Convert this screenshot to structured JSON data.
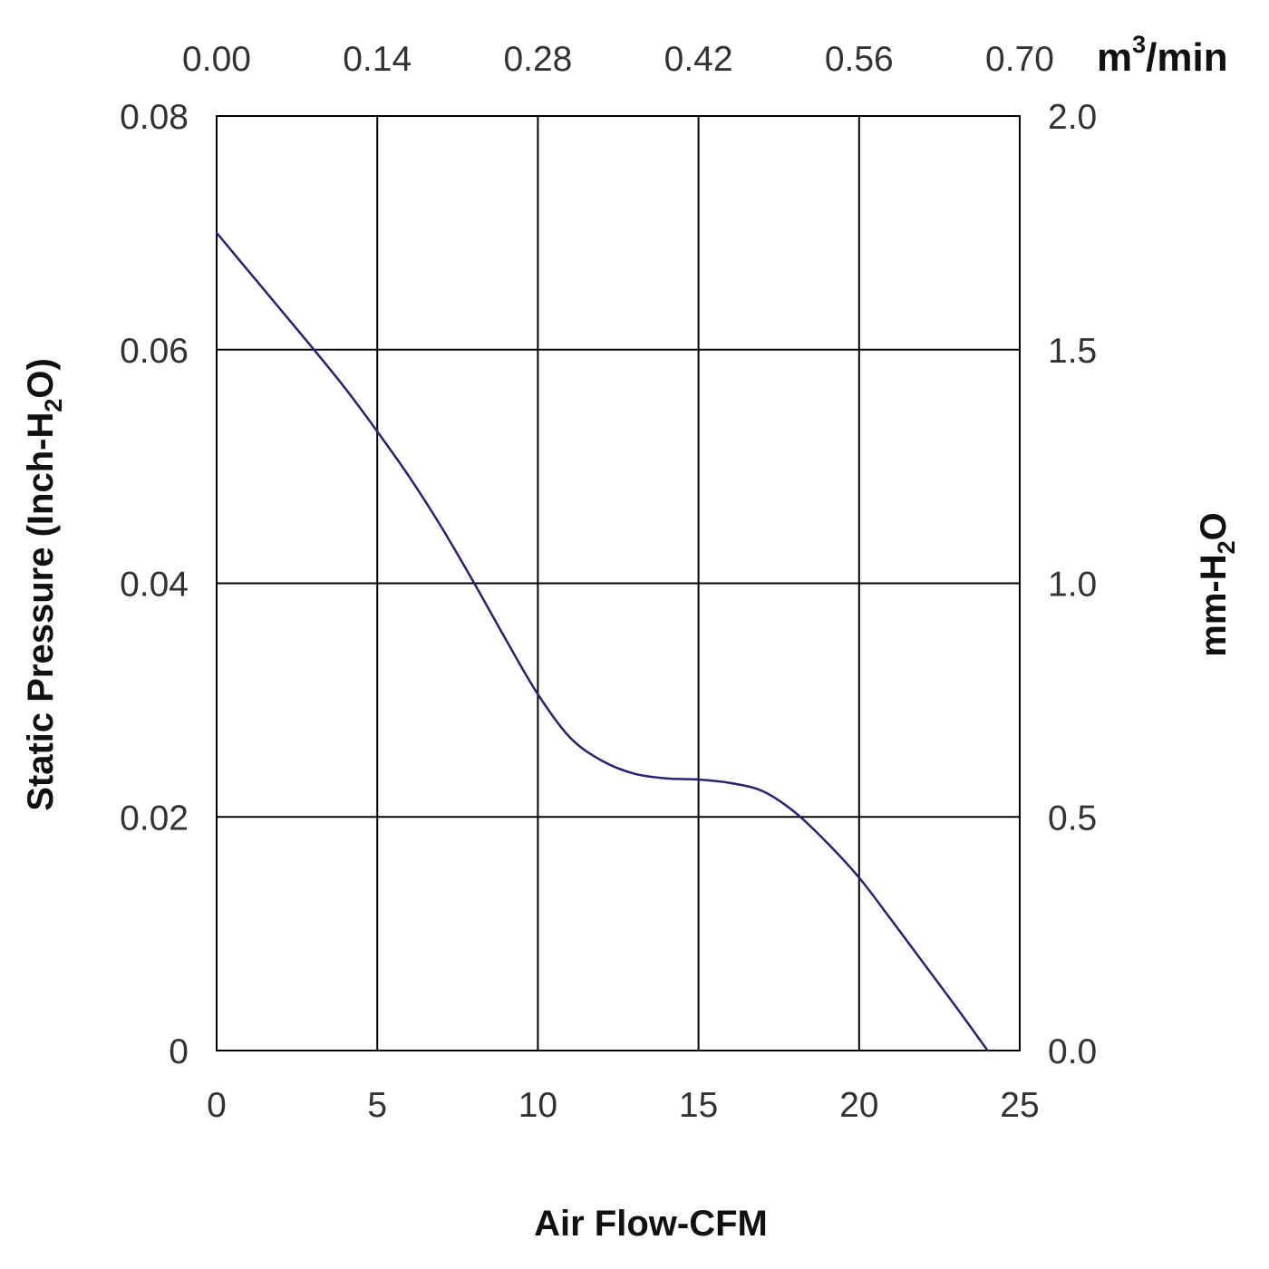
{
  "chart_data": {
    "type": "line",
    "title": "",
    "xlabel": "Air Flow-CFM",
    "ylabel": {
      "main": "Static Pressure (Inch-H",
      "sub": "2",
      "end": "O)"
    },
    "y2label": {
      "main": "mm-H",
      "sub": "2",
      "end": "O"
    },
    "x2label": {
      "main": "m",
      "sup": "3",
      "end": "/min"
    },
    "xlim": [
      0,
      25
    ],
    "ylim": [
      0,
      0.08
    ],
    "x_ticks": [
      "0",
      "5",
      "10",
      "15",
      "20",
      "25"
    ],
    "y_ticks": [
      "0",
      "0.02",
      "0.04",
      "0.06",
      "0.08"
    ],
    "x2_ticks": [
      "0.00",
      "0.14",
      "0.28",
      "0.42",
      "0.56",
      "0.70"
    ],
    "y2_ticks": [
      "0.0",
      "0.5",
      "1.0",
      "1.5",
      "2.0"
    ],
    "grid": true,
    "series": [
      {
        "name": "Static Pressure",
        "color": "#23236e",
        "x": [
          0,
          1,
          2,
          3,
          4,
          5,
          6,
          7,
          8,
          9,
          10,
          11,
          12,
          13,
          14,
          15,
          16,
          17,
          18,
          19,
          20,
          21,
          22,
          23,
          24
        ],
        "y": [
          0.07,
          0.0667,
          0.0634,
          0.0601,
          0.0567,
          0.053,
          0.0491,
          0.0448,
          0.0401,
          0.0352,
          0.0305,
          0.0268,
          0.0248,
          0.0237,
          0.0233,
          0.0232,
          0.0229,
          0.0222,
          0.0204,
          0.0178,
          0.0148,
          0.0112,
          0.0075,
          0.0038,
          0.0
        ]
      }
    ]
  }
}
